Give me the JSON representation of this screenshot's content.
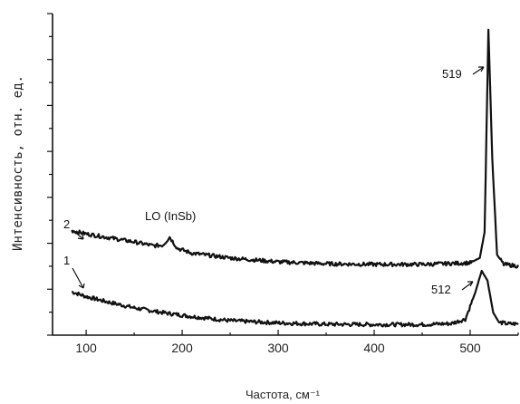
{
  "chart_data": {
    "type": "line",
    "xlabel": "Частота, см⁻¹",
    "ylabel": "Интенсивность, отн. ед.",
    "xlim": [
      65,
      550
    ],
    "ylim": [
      0,
      1
    ],
    "x_ticks": [
      100,
      200,
      300,
      400,
      500
    ],
    "grid": false,
    "series": [
      {
        "name": "1",
        "x": [
          85,
          100,
          120,
          150,
          180,
          210,
          250,
          300,
          350,
          400,
          450,
          480,
          495,
          505,
          512,
          518,
          524,
          530,
          540,
          550
        ],
        "y": [
          0.135,
          0.12,
          0.105,
          0.085,
          0.07,
          0.058,
          0.045,
          0.038,
          0.034,
          0.033,
          0.033,
          0.036,
          0.05,
          0.13,
          0.2,
          0.17,
          0.07,
          0.04,
          0.035,
          0.035
        ]
      },
      {
        "name": "2",
        "x": [
          85,
          100,
          120,
          150,
          170,
          180,
          187,
          195,
          210,
          250,
          300,
          350,
          400,
          450,
          500,
          510,
          515,
          519,
          523,
          528,
          535,
          550
        ],
        "y": [
          0.325,
          0.315,
          0.305,
          0.29,
          0.278,
          0.28,
          0.305,
          0.27,
          0.255,
          0.24,
          0.228,
          0.222,
          0.22,
          0.22,
          0.225,
          0.24,
          0.32,
          0.95,
          0.55,
          0.25,
          0.22,
          0.215
        ]
      }
    ],
    "annotations": [
      {
        "text": "519",
        "x": 519
      },
      {
        "text": "512",
        "x": 512
      },
      {
        "text": "LO (InSb)",
        "x": 187
      },
      {
        "text": "2",
        "series": "2"
      },
      {
        "text": "1",
        "series": "1"
      }
    ]
  }
}
